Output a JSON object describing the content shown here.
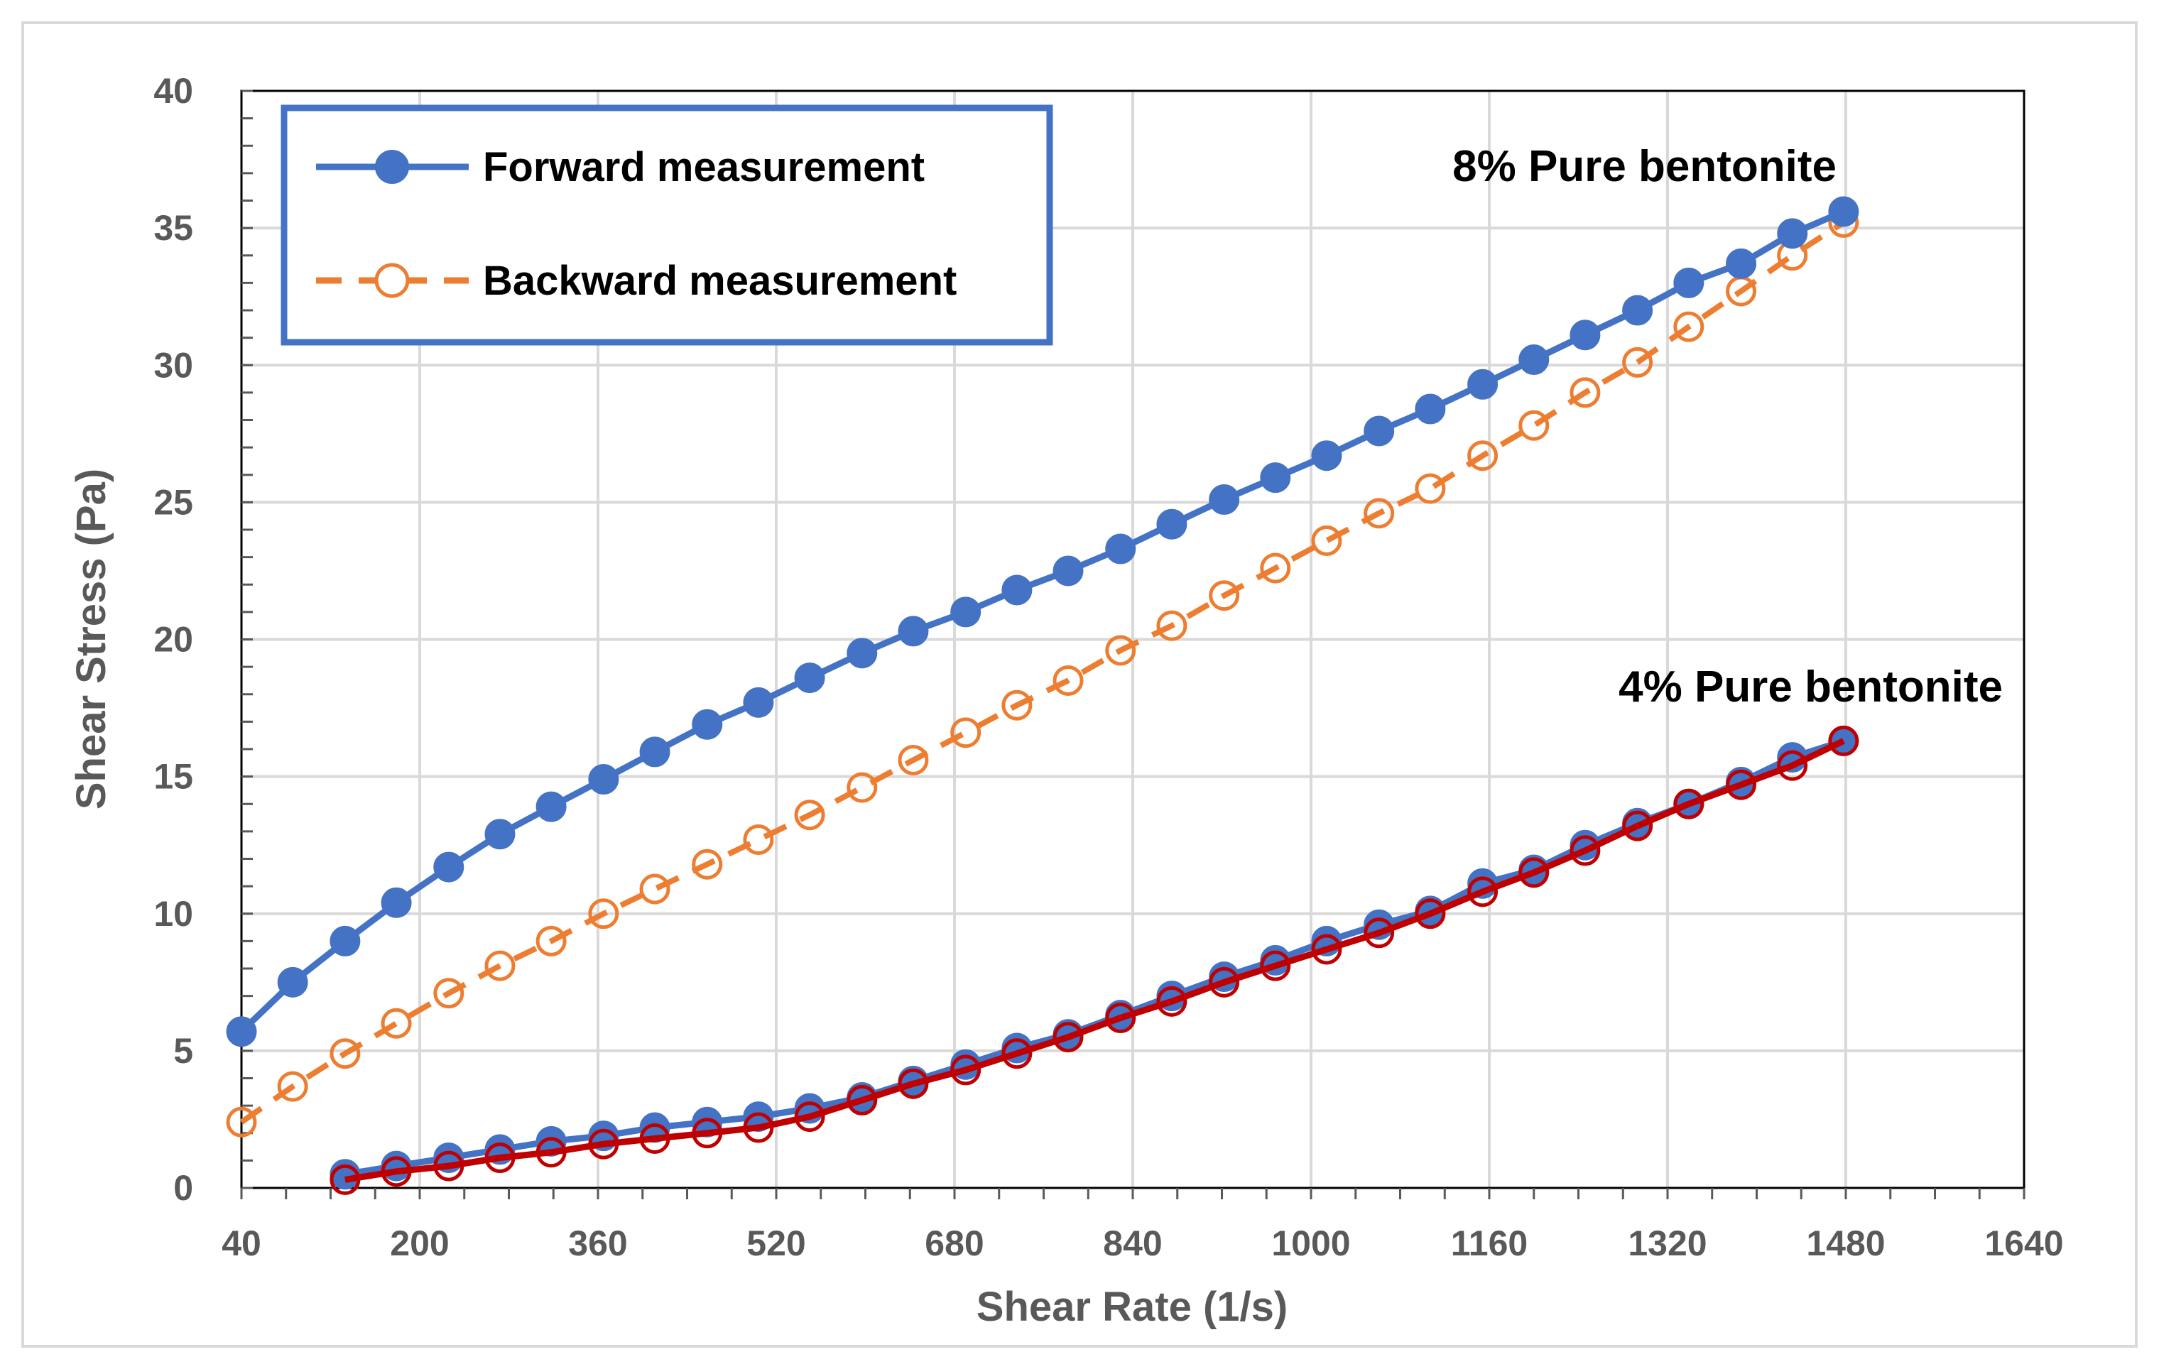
{
  "chart_data": {
    "type": "line",
    "title": "",
    "xlabel": "Shear Rate (1/s)",
    "ylabel": "Shear Stress (Pa)",
    "xlim": [
      40,
      1640
    ],
    "ylim": [
      0,
      40
    ],
    "xticks": [
      40,
      200,
      360,
      520,
      680,
      840,
      1000,
      1160,
      1320,
      1480,
      1640
    ],
    "yticks": [
      0,
      5,
      10,
      15,
      20,
      25,
      30,
      35,
      40
    ],
    "grid": true,
    "legend": {
      "position": "top-left",
      "entries": [
        "Forward measurement",
        "Backward measurement"
      ]
    },
    "annotations": [
      "8% Pure bentonite",
      "4% Pure bentonite"
    ],
    "series": [
      {
        "name": "Forward measurement",
        "group": "8% Pure bentonite",
        "style": "solid-filled",
        "color": "#4472C4",
        "x": [
          40,
          86,
          133,
          179,
          226,
          272,
          318,
          365,
          411,
          458,
          504,
          550,
          597,
          643,
          690,
          736,
          782,
          829,
          875,
          922,
          968,
          1014,
          1061,
          1107,
          1154,
          1200,
          1246,
          1293,
          1339,
          1386,
          1432,
          1478
        ],
        "values": [
          5.7,
          7.5,
          9.0,
          10.4,
          11.7,
          12.9,
          13.9,
          14.9,
          15.9,
          16.9,
          17.7,
          18.6,
          19.5,
          20.3,
          21.0,
          21.8,
          22.5,
          23.3,
          24.2,
          25.1,
          25.9,
          26.7,
          27.6,
          28.4,
          29.3,
          30.2,
          31.1,
          32.0,
          33.0,
          33.7,
          34.8,
          35.6
        ]
      },
      {
        "name": "Backward measurement",
        "group": "8% Pure bentonite",
        "style": "dashed-open",
        "color": "#ED7D31",
        "x": [
          40,
          86,
          133,
          179,
          226,
          272,
          318,
          365,
          411,
          458,
          504,
          550,
          597,
          643,
          690,
          736,
          782,
          829,
          875,
          922,
          968,
          1014,
          1061,
          1107,
          1154,
          1200,
          1246,
          1293,
          1339,
          1386,
          1432,
          1478
        ],
        "values": [
          2.4,
          3.7,
          4.9,
          6.0,
          7.1,
          8.1,
          9.0,
          10.0,
          10.9,
          11.8,
          12.7,
          13.6,
          14.6,
          15.6,
          16.6,
          17.6,
          18.5,
          19.6,
          20.5,
          21.6,
          22.6,
          23.6,
          24.6,
          25.5,
          26.7,
          27.8,
          29.0,
          30.1,
          31.4,
          32.7,
          34.0,
          35.2
        ]
      },
      {
        "name": "Forward measurement",
        "group": "4% Pure bentonite",
        "style": "solid-filled",
        "color": "#4472C4",
        "x": [
          133,
          179,
          226,
          272,
          318,
          365,
          411,
          458,
          504,
          550,
          597,
          643,
          690,
          736,
          782,
          829,
          875,
          922,
          968,
          1014,
          1061,
          1107,
          1154,
          1200,
          1246,
          1293,
          1339,
          1386,
          1432,
          1478
        ],
        "values": [
          0.5,
          0.8,
          1.1,
          1.4,
          1.7,
          1.9,
          2.2,
          2.4,
          2.6,
          2.9,
          3.3,
          3.9,
          4.5,
          5.1,
          5.6,
          6.3,
          7.0,
          7.7,
          8.3,
          9.0,
          9.6,
          10.1,
          11.1,
          11.6,
          12.5,
          13.3,
          14.0,
          14.8,
          15.7,
          16.3
        ]
      },
      {
        "name": "Backward measurement",
        "group": "4% Pure bentonite",
        "style": "solid-open",
        "color": "#C00000",
        "x": [
          133,
          179,
          226,
          272,
          318,
          365,
          411,
          458,
          504,
          550,
          597,
          643,
          690,
          736,
          782,
          829,
          875,
          922,
          968,
          1014,
          1061,
          1107,
          1154,
          1200,
          1246,
          1293,
          1339,
          1386,
          1432,
          1478
        ],
        "values": [
          0.3,
          0.6,
          0.8,
          1.1,
          1.3,
          1.6,
          1.8,
          2.0,
          2.2,
          2.6,
          3.2,
          3.8,
          4.3,
          4.9,
          5.5,
          6.2,
          6.8,
          7.5,
          8.1,
          8.7,
          9.3,
          10.0,
          10.8,
          11.5,
          12.3,
          13.2,
          14.0,
          14.7,
          15.4,
          16.3
        ]
      }
    ]
  }
}
